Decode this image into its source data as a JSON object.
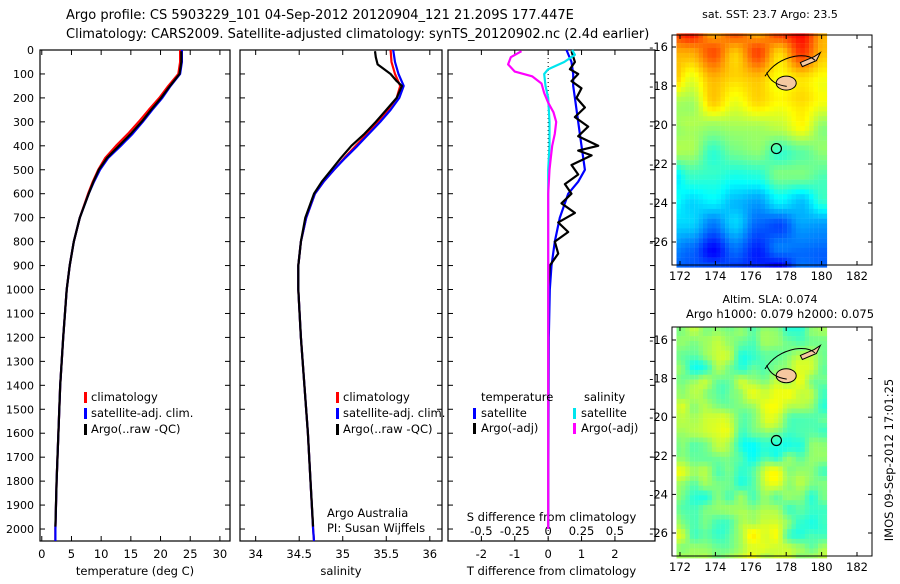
{
  "header": {
    "line1": "Argo profile: CS 5903229_101 04-Sep-2012 20120904_121 21.209S 177.447E",
    "line2": "Climatology: CARS2009. Satellite-adjusted climatology: synTS_20120902.nc (2.4d earlier)"
  },
  "footer_stamp": "IMOS 09-Sep-2012 17:01:25",
  "chart_data": [
    {
      "type": "line",
      "id": "temperature",
      "xlabel": "temperature (deg C)",
      "ylabel": "depth",
      "xlim": [
        -0.3,
        31.7
      ],
      "ylim": [
        2050,
        0
      ],
      "xticks": [
        0,
        5,
        10,
        15,
        20,
        25,
        30
      ],
      "yticks": [
        0,
        100,
        200,
        300,
        400,
        500,
        600,
        700,
        800,
        900,
        1000,
        1100,
        1200,
        1300,
        1400,
        1500,
        1600,
        1700,
        1800,
        1900,
        2000
      ],
      "legend": [
        "climatology",
        "satellite-adj. clim.",
        "Argo(..raw -QC)"
      ],
      "series": [
        {
          "name": "climatology",
          "color": "#ff0000",
          "depth": [
            0,
            50,
            100,
            150,
            200,
            250,
            300,
            350,
            400,
            450,
            500,
            550,
            600,
            700,
            800,
            900,
            1000,
            1200,
            1400,
            1600,
            1800,
            2000,
            2050
          ],
          "values": [
            23.3,
            23.3,
            23.0,
            21.3,
            19.8,
            18.0,
            16.3,
            14.5,
            12.5,
            10.7,
            9.5,
            8.6,
            7.8,
            6.4,
            5.4,
            4.7,
            4.2,
            3.6,
            3.1,
            2.8,
            2.5,
            2.3,
            2.3
          ]
        },
        {
          "name": "satellite-adj. clim.",
          "color": "#0000ff",
          "depth": [
            0,
            50,
            100,
            150,
            200,
            250,
            300,
            350,
            400,
            450,
            500,
            550,
            600,
            700,
            800,
            900,
            1000,
            1200,
            1400,
            1600,
            1800,
            2000,
            2050
          ],
          "values": [
            23.6,
            23.6,
            23.3,
            21.7,
            20.3,
            18.6,
            17.0,
            15.3,
            13.3,
            11.2,
            9.8,
            8.8,
            7.9,
            6.4,
            5.4,
            4.7,
            4.2,
            3.6,
            3.1,
            2.8,
            2.5,
            2.3,
            2.3
          ]
        },
        {
          "name": "Argo(..raw -QC)",
          "color": "#000000",
          "depth": [
            5,
            50,
            100,
            150,
            200,
            250,
            300,
            350,
            400,
            450,
            500,
            550,
            600,
            700,
            800,
            900,
            1000,
            1200,
            1400,
            1600,
            1800,
            1990
          ],
          "values": [
            23.5,
            23.5,
            23.2,
            21.6,
            20.1,
            18.4,
            16.8,
            15.0,
            13.0,
            11.0,
            9.6,
            8.7,
            7.9,
            6.4,
            5.4,
            4.7,
            4.2,
            3.6,
            3.1,
            2.8,
            2.5,
            2.3
          ]
        }
      ]
    },
    {
      "type": "line",
      "id": "salinity",
      "xlabel": "salinity",
      "xlim": [
        33.82,
        36.14
      ],
      "ylim": [
        2050,
        0
      ],
      "xticks": [
        34,
        34.5,
        35,
        35.5,
        36
      ],
      "legend": [
        "climatology",
        "satellite-adj. clim.",
        "Argo(..raw -QC)"
      ],
      "annotation": [
        "Argo Australia",
        "PI: Susan Wijffels"
      ],
      "series": [
        {
          "name": "climatology",
          "color": "#ff0000",
          "depth": [
            0,
            50,
            100,
            150,
            200,
            250,
            300,
            350,
            400,
            450,
            500,
            550,
            600,
            700,
            800,
            900,
            1000,
            1200,
            1400,
            1600,
            1800,
            2000,
            2050
          ],
          "values": [
            35.55,
            35.56,
            35.6,
            35.66,
            35.62,
            35.52,
            35.4,
            35.28,
            35.15,
            35.02,
            34.9,
            34.78,
            34.68,
            34.58,
            34.52,
            34.49,
            34.49,
            34.52,
            34.56,
            34.6,
            34.63,
            34.66,
            34.67
          ]
        },
        {
          "name": "satellite-adj. clim.",
          "color": "#0000ff",
          "depth": [
            0,
            50,
            100,
            150,
            200,
            250,
            300,
            350,
            400,
            450,
            500,
            550,
            600,
            700,
            800,
            900,
            1000,
            1200,
            1400,
            1600,
            1800,
            2000,
            2050
          ],
          "values": [
            35.58,
            35.6,
            35.64,
            35.7,
            35.65,
            35.55,
            35.43,
            35.3,
            35.17,
            35.03,
            34.9,
            34.78,
            34.68,
            34.58,
            34.52,
            34.49,
            34.49,
            34.52,
            34.56,
            34.6,
            34.63,
            34.66,
            34.67
          ]
        },
        {
          "name": "Argo(..raw -QC)",
          "color": "#000000",
          "depth": [
            5,
            30,
            60,
            100,
            130,
            150,
            200,
            250,
            300,
            350,
            400,
            450,
            500,
            550,
            600,
            700,
            800,
            900,
            1000,
            1200,
            1400,
            1600,
            1800,
            1990
          ],
          "values": [
            35.37,
            35.38,
            35.4,
            35.55,
            35.62,
            35.68,
            35.62,
            35.5,
            35.38,
            35.25,
            35.1,
            34.98,
            34.87,
            34.76,
            34.67,
            34.57,
            34.52,
            34.49,
            34.49,
            34.52,
            34.56,
            34.6,
            34.63,
            34.66
          ]
        }
      ]
    },
    {
      "type": "line",
      "id": "difference",
      "xlabel": "T difference from climatology",
      "xlabel2": "S difference from climatology",
      "xlim": [
        -3.0,
        3.2
      ],
      "ylim": [
        2050,
        0
      ],
      "xticks": [
        -2,
        -1,
        0,
        1,
        2
      ],
      "xticks2": [
        -0.5,
        -0.25,
        0,
        0.25,
        0.5
      ],
      "xticks2_labels": [
        "-0.5",
        "-0.25",
        "0",
        "0.25",
        "0.5"
      ],
      "legend_headers": [
        "temperature",
        "salinity"
      ],
      "legend": [
        "satellite",
        "Argo(-adj)",
        "satellite",
        "Argo(-adj)"
      ],
      "series": [
        {
          "name": "T satellite",
          "color": "#0000ff",
          "scale": "T",
          "depth": [
            0,
            50,
            100,
            150,
            200,
            300,
            400,
            500,
            550,
            600,
            700,
            800,
            900,
            1000,
            1200,
            2000
          ],
          "values": [
            0.55,
            0.7,
            0.75,
            0.75,
            0.8,
            0.9,
            1.0,
            1.1,
            0.9,
            0.6,
            0.35,
            0.2,
            0.1,
            0.05,
            0.02,
            0.0
          ]
        },
        {
          "name": "T Argo(-adj)",
          "color": "#000000",
          "scale": "T",
          "depth": [
            5,
            50,
            80,
            100,
            130,
            160,
            200,
            240,
            280,
            320,
            360,
            400,
            420,
            440,
            480,
            520,
            560,
            600,
            640,
            680,
            720,
            760,
            800,
            850,
            900,
            1000,
            1100,
            2000
          ],
          "values": [
            0.7,
            0.8,
            0.65,
            0.9,
            0.7,
            1.0,
            0.85,
            1.1,
            0.8,
            1.2,
            0.9,
            1.5,
            0.9,
            1.3,
            0.7,
            0.9,
            0.5,
            0.7,
            0.4,
            0.8,
            0.3,
            0.6,
            0.2,
            0.3,
            0.05,
            0.0,
            0.0,
            0.0
          ]
        },
        {
          "name": "S satellite",
          "color": "#00e5ee",
          "scale": "S",
          "depth": [
            0,
            20,
            50,
            80,
            100,
            150,
            200,
            300,
            400,
            500,
            700,
            1000,
            2000
          ],
          "values": [
            0.18,
            0.2,
            0.12,
            0.0,
            -0.03,
            -0.02,
            0.0,
            0.01,
            0.01,
            0.0,
            0.0,
            0.0,
            0.0
          ]
        },
        {
          "name": "S Argo(-adj)",
          "color": "#ff00ff",
          "scale": "S",
          "depth": [
            5,
            30,
            60,
            90,
            110,
            140,
            180,
            220,
            260,
            300,
            350,
            400,
            450,
            500,
            600,
            800,
            2000
          ],
          "values": [
            -0.2,
            -0.28,
            -0.3,
            -0.25,
            -0.12,
            -0.05,
            -0.03,
            0.0,
            0.04,
            0.06,
            0.05,
            0.03,
            0.02,
            0.01,
            0.0,
            0.0,
            0.0
          ]
        }
      ]
    },
    {
      "type": "heatmap",
      "id": "sst-map",
      "title": "sat. SST: 23.7 Argo: 23.5",
      "xlim": [
        171.8,
        183
      ],
      "ylim": [
        -27.2,
        -15.3
      ],
      "xticks": [
        172,
        174,
        176,
        178,
        180,
        182
      ],
      "yticks": [
        -16,
        -18,
        -20,
        -22,
        -24,
        -26
      ],
      "argo_position": {
        "lat": -21.209,
        "lon": 177.447
      }
    },
    {
      "type": "heatmap",
      "id": "sla-map",
      "title": "Altim. SLA: 0.074",
      "subtitle": "Argo h1000: 0.079 h2000: 0.075",
      "xlim": [
        171.8,
        183
      ],
      "ylim": [
        -27.2,
        -15.3
      ],
      "xticks": [
        172,
        174,
        176,
        178,
        180,
        182
      ],
      "yticks": [
        -16,
        -18,
        -20,
        -22,
        -24,
        -26
      ],
      "argo_position": {
        "lat": -21.209,
        "lon": 177.447
      }
    }
  ]
}
